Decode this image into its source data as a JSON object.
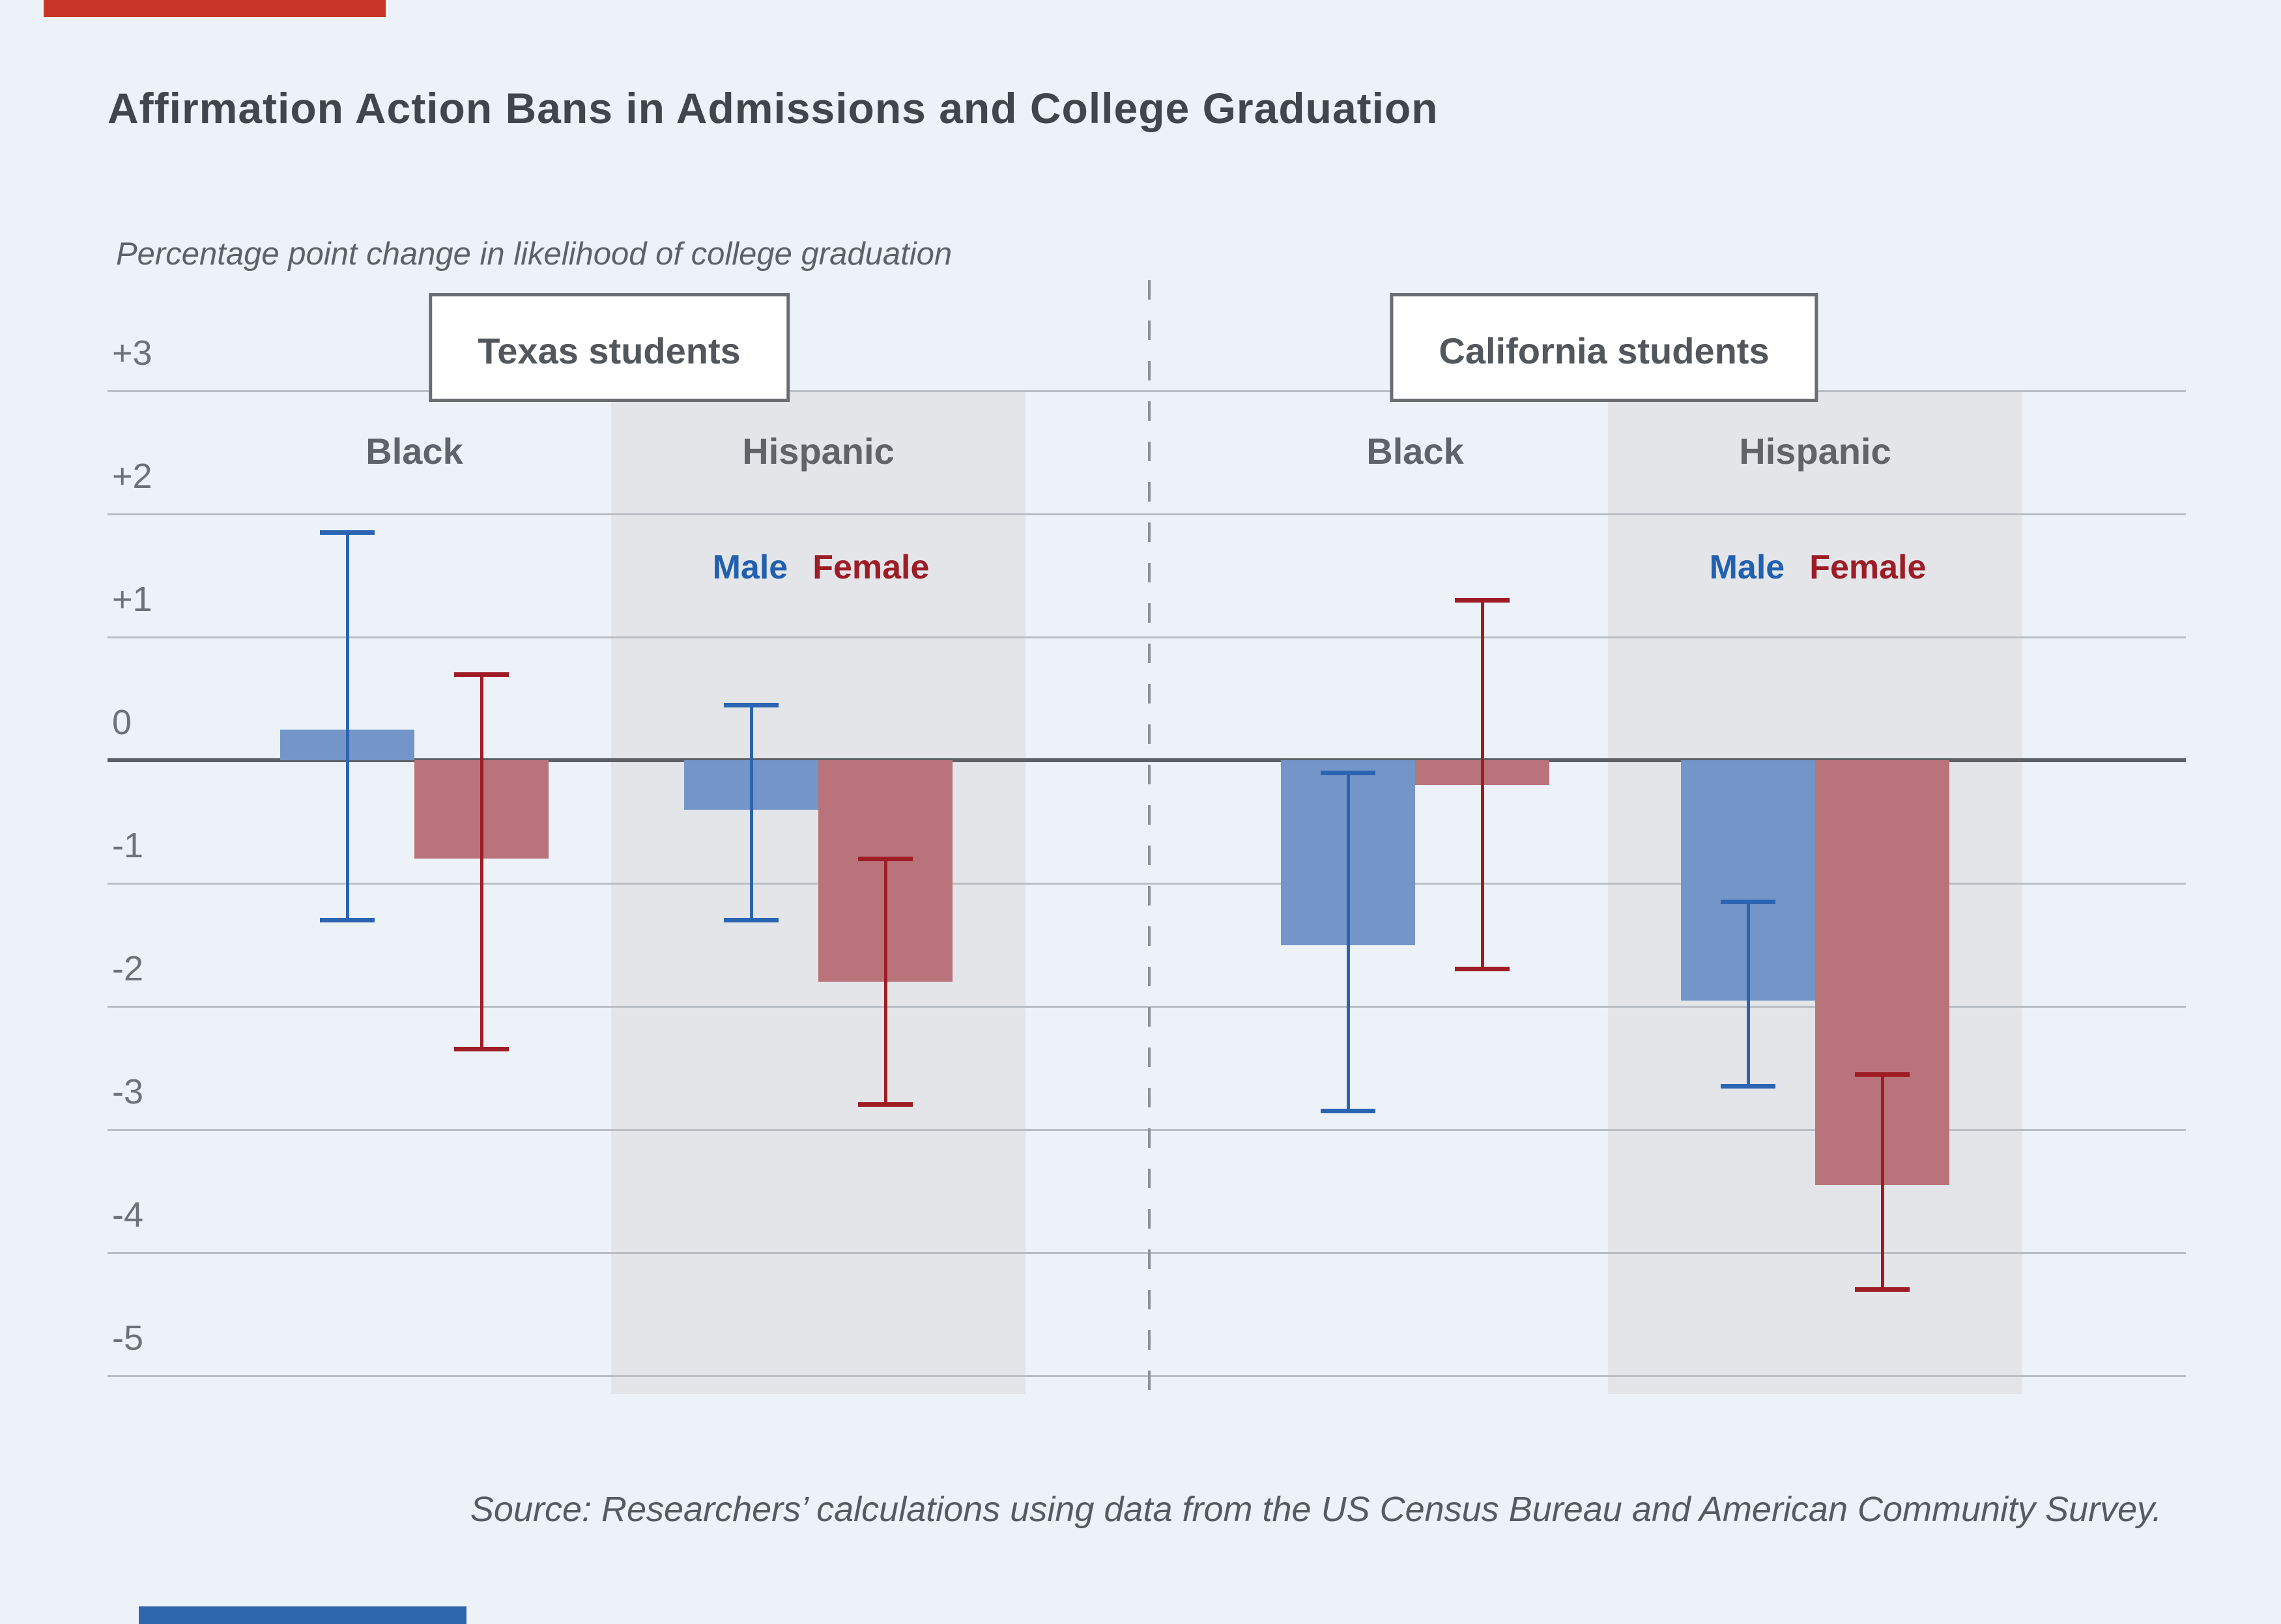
{
  "title": "Affirmation Action Bans in Admissions and College Graduation",
  "subtitle": "Percentage point change in likelihood of college graduation",
  "source": "Source: Researchers’ calculations using data from the US Census Bureau and American Community Survey.",
  "accents": {
    "top_bar_color": "#c93527",
    "bottom_bar_color": "#2e66ad"
  },
  "colors": {
    "background": "#edf2f8",
    "shaded_band": "#e3e5e9",
    "gridline": "#b9bec4",
    "zero_line": "#5d6165",
    "male_bar": "#7395c7",
    "female_bar": "#b9747b",
    "male_error": "#2b64b0",
    "female_error": "#9f1c24",
    "male_label": "#2160ae",
    "female_label": "#9d1c25",
    "box_border": "#6a6e72",
    "divider": "#8c9196"
  },
  "chart_data": {
    "type": "bar",
    "title": "Affirmation Action Bans in Admissions and College Graduation",
    "ylabel": "Percentage point change in likelihood of college graduation",
    "ylim": [
      -5.2,
      3.2
    ],
    "grid": true,
    "y_axis_ticks": [
      {
        "label": "+3",
        "value": 3
      },
      {
        "label": "+2",
        "value": 2
      },
      {
        "label": "+1",
        "value": 1
      },
      {
        "label": "0",
        "value": 0
      },
      {
        "label": "-1",
        "value": -1
      },
      {
        "label": "-2",
        "value": -2
      },
      {
        "label": "-3",
        "value": -3
      },
      {
        "label": "-4",
        "value": -4
      },
      {
        "label": "-5",
        "value": -5
      }
    ],
    "legend": {
      "male": "Male",
      "female": "Female"
    },
    "panels": [
      {
        "label": "Texas students",
        "groups": [
          {
            "label": "Black",
            "shaded": false,
            "series": [
              {
                "name": "Male",
                "value": 0.25,
                "ci_high": 1.85,
                "ci_low": -1.3
              },
              {
                "name": "Female",
                "value": -0.8,
                "ci_high": 0.7,
                "ci_low": -2.35
              }
            ]
          },
          {
            "label": "Hispanic",
            "shaded": true,
            "series": [
              {
                "name": "Male",
                "value": -0.4,
                "ci_high": 0.45,
                "ci_low": -1.3
              },
              {
                "name": "Female",
                "value": -1.8,
                "ci_high": -0.8,
                "ci_low": -2.8
              }
            ]
          }
        ]
      },
      {
        "label": "California students",
        "groups": [
          {
            "label": "Black",
            "shaded": false,
            "series": [
              {
                "name": "Male",
                "value": -1.5,
                "ci_high": -0.1,
                "ci_low": -2.85
              },
              {
                "name": "Female",
                "value": -0.2,
                "ci_high": 1.3,
                "ci_low": -1.7
              }
            ]
          },
          {
            "label": "Hispanic",
            "shaded": true,
            "series": [
              {
                "name": "Male",
                "value": -1.95,
                "ci_high": -1.15,
                "ci_low": -2.65
              },
              {
                "name": "Female",
                "value": -3.45,
                "ci_high": -2.55,
                "ci_low": -4.3
              }
            ]
          }
        ]
      }
    ]
  }
}
